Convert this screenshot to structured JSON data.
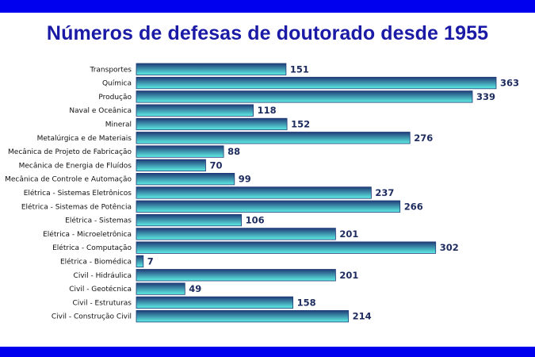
{
  "title": "Números de defesas de doutorado desde 1955",
  "colors": {
    "band": "#0000ee",
    "title": "#1a1aa6",
    "bar_top": "#1f3b77",
    "bar_bottom": "#5ff0e6",
    "bar_outline": "#1f3b77",
    "value_text": "#1d2b5e"
  },
  "chart_data": {
    "type": "bar",
    "orientation": "horizontal",
    "title": "Números de defesas de doutorado desde 1955",
    "xlabel": "",
    "ylabel": "",
    "grid": false,
    "categories": [
      "Transportes",
      "Química",
      "Produção",
      "Naval e Oceânica",
      "Mineral",
      "Metalúrgica e de Materiais",
      "Mecânica de Projeto de Fabricação",
      "Mecânica de Energia de Fluídos",
      "Mecânica de Controle e Automação",
      "Elétrica - Sistemas Eletrônicos",
      "Elétrica - Sistemas de Potência",
      "Elétrica - Sistemas",
      "Elétrica - Microeletrônica",
      "Elétrica - Computação",
      "Elétrica - Biomédica",
      "Civil - Hidráulica",
      "Civil - Geotécnica",
      "Civil - Estruturas",
      "Civil - Construção Civil"
    ],
    "values": [
      151,
      363,
      339,
      118,
      152,
      276,
      88,
      70,
      99,
      237,
      266,
      106,
      201,
      302,
      7,
      201,
      49,
      158,
      214
    ],
    "xlim": [
      0,
      363
    ]
  }
}
